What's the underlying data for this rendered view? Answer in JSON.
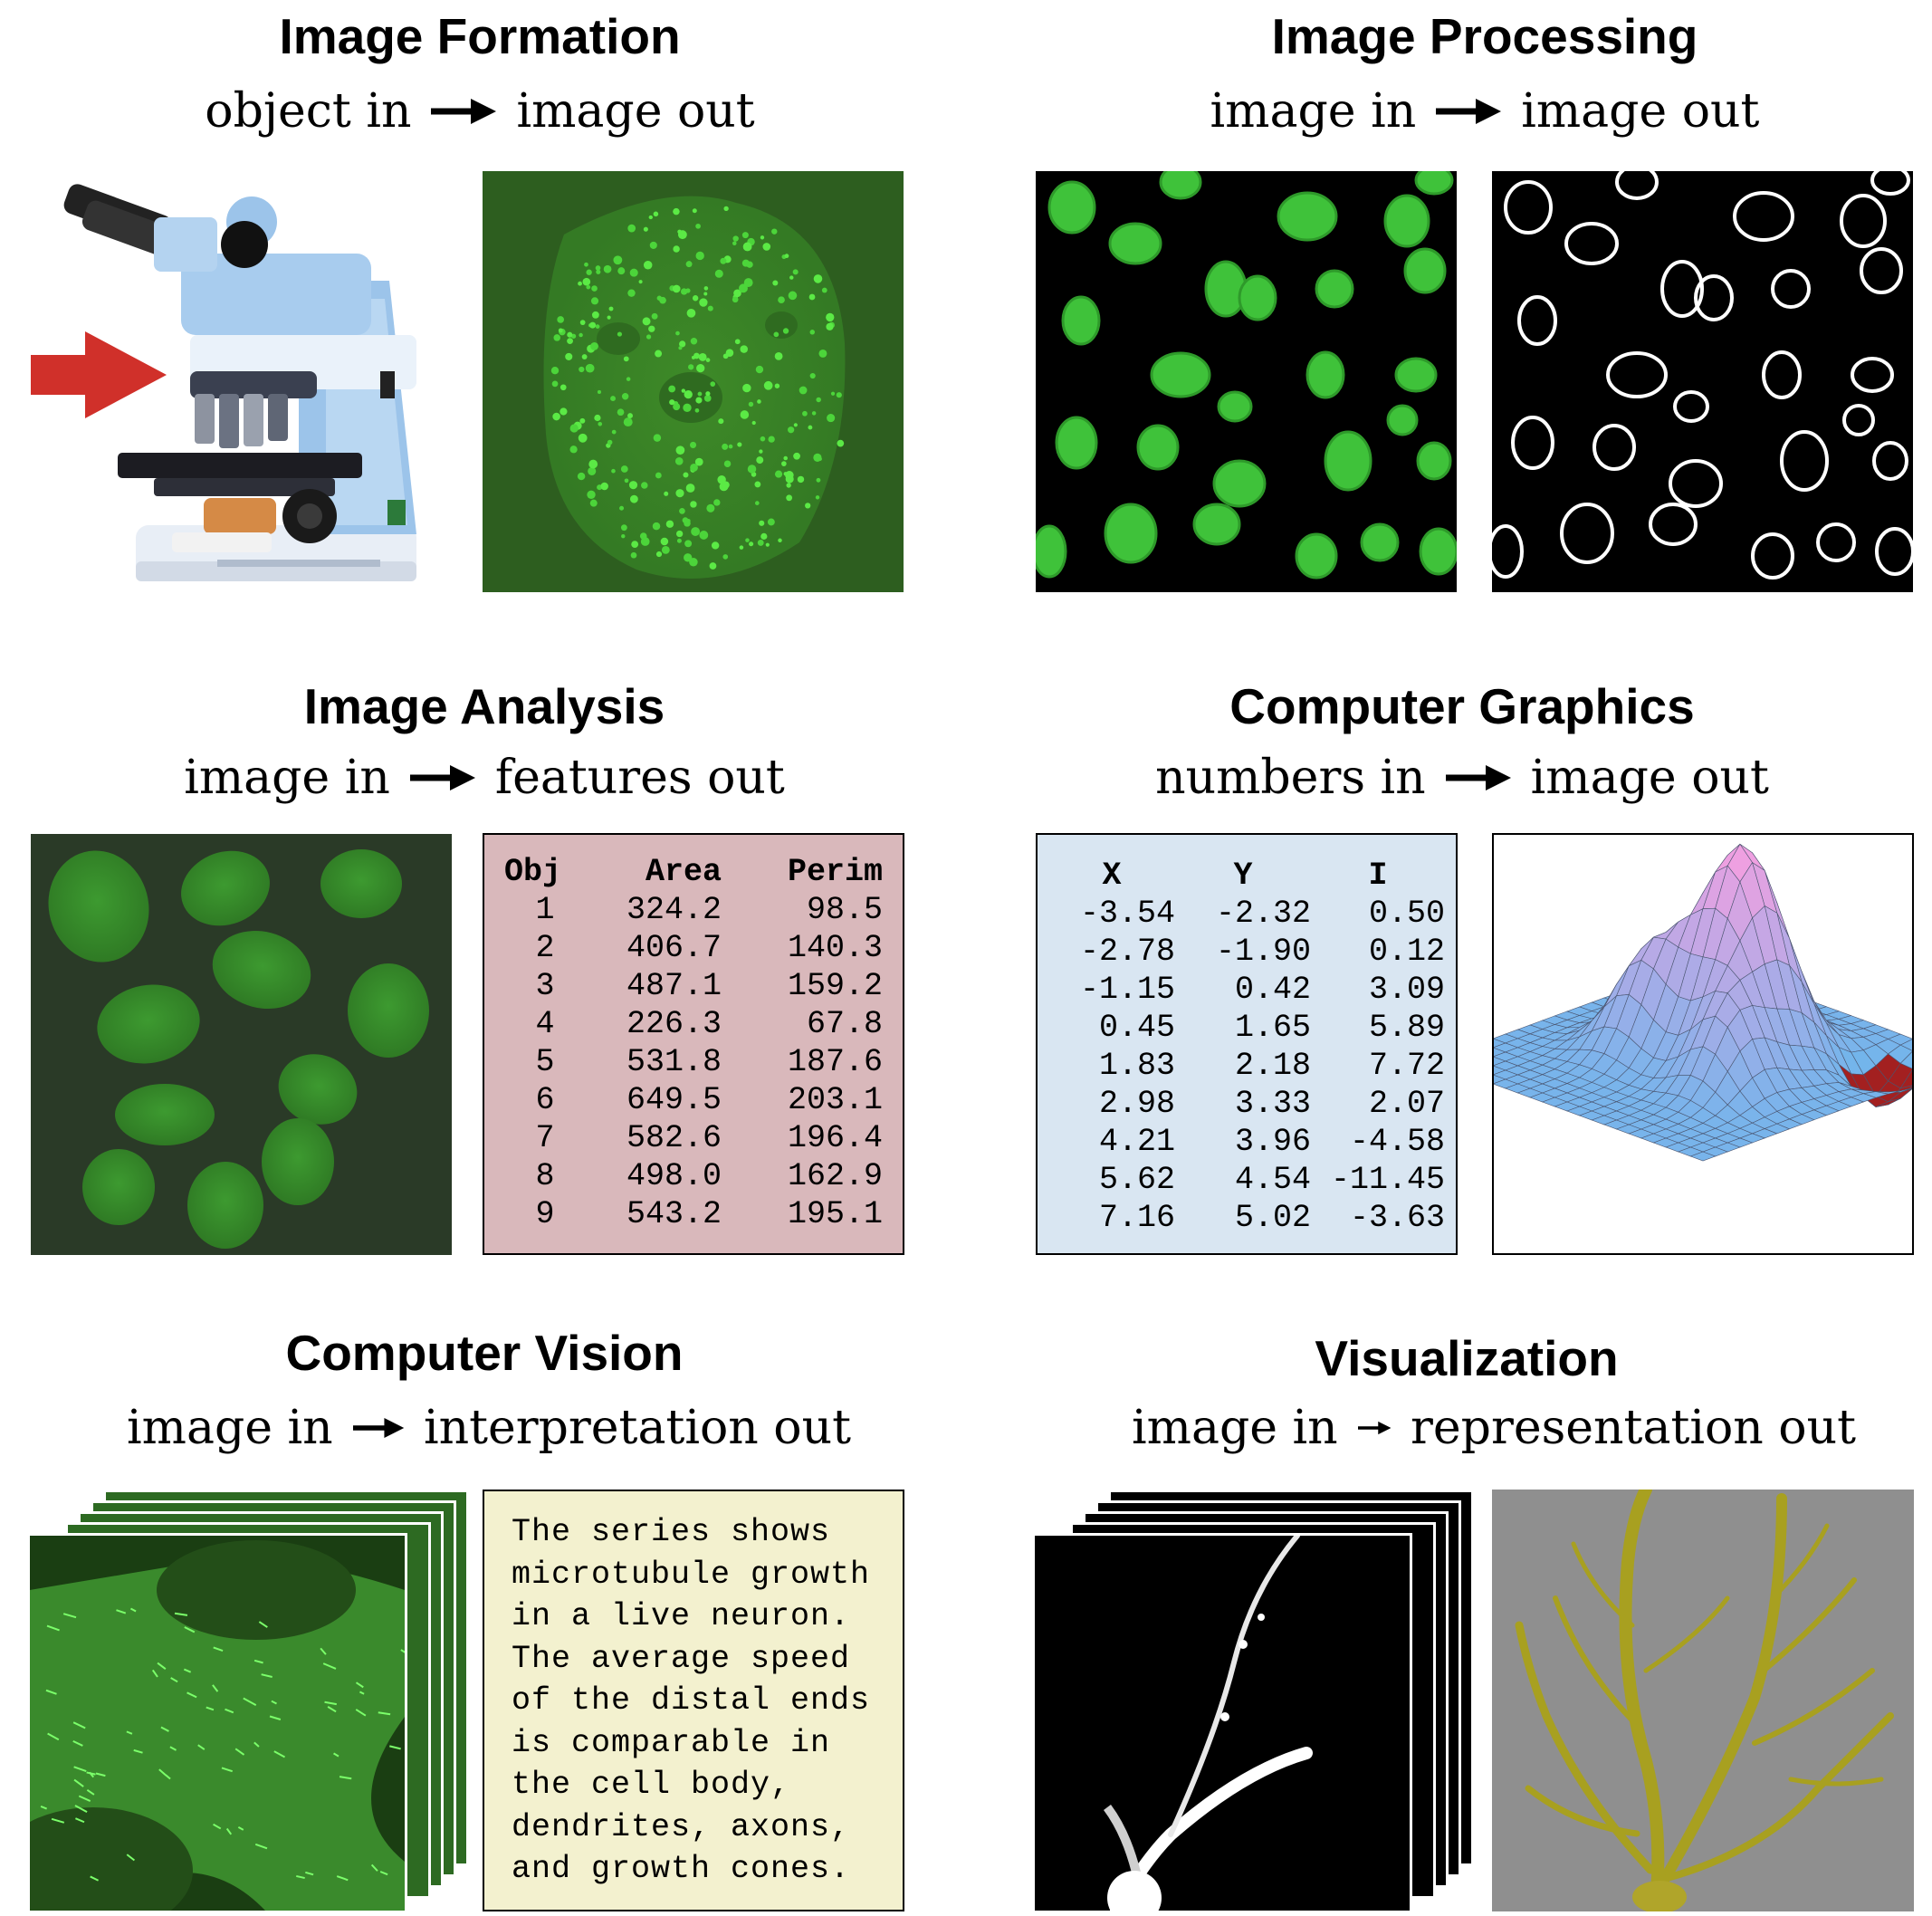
{
  "sections": {
    "formation": {
      "title": "Image Formation",
      "input": "object in",
      "output": "image out"
    },
    "processing": {
      "title": "Image Processing",
      "input": "image in",
      "output": "image out"
    },
    "analysis": {
      "title": "Image Analysis",
      "input": "image in",
      "output": "features out"
    },
    "graphics": {
      "title": "Computer Graphics",
      "input": "numbers in",
      "output": "image out"
    },
    "vision": {
      "title": "Computer Vision",
      "input": "image in",
      "output": "interpretation out"
    },
    "visualization": {
      "title": "Visualization",
      "input": "image in",
      "output": "representation out"
    }
  },
  "features_table": {
    "headers": [
      "Obj",
      "Area",
      "Perim"
    ],
    "rows": [
      [
        "1",
        "324.2",
        "98.5"
      ],
      [
        "2",
        "406.7",
        "140.3"
      ],
      [
        "3",
        "487.1",
        "159.2"
      ],
      [
        "4",
        "226.3",
        "67.8"
      ],
      [
        "5",
        "531.8",
        "187.6"
      ],
      [
        "6",
        "649.5",
        "203.1"
      ],
      [
        "7",
        "582.6",
        "196.4"
      ],
      [
        "8",
        "498.0",
        "162.9"
      ],
      [
        "9",
        "543.2",
        "195.1"
      ]
    ]
  },
  "numbers_table": {
    "headers": [
      "X",
      "Y",
      "I"
    ],
    "rows": [
      [
        "-3.54",
        "-2.32",
        "0.50"
      ],
      [
        "-2.78",
        "-1.90",
        "0.12"
      ],
      [
        "-1.15",
        "0.42",
        "3.09"
      ],
      [
        "0.45",
        "1.65",
        "5.89"
      ],
      [
        "1.83",
        "2.18",
        "7.72"
      ],
      [
        "2.98",
        "3.33",
        "2.07"
      ],
      [
        "4.21",
        "3.96",
        "-4.58"
      ],
      [
        "5.62",
        "4.54",
        "-11.45"
      ],
      [
        "7.16",
        "5.02",
        "-3.63"
      ]
    ]
  },
  "interpretation_lines": [
    "The series shows",
    "microtubule growth",
    "in a live neuron.",
    "The average speed",
    "of the distal ends",
    "is comparable in",
    "the cell body,",
    "dendrites, axons,",
    "and growth cones."
  ],
  "colors": {
    "features_bg": "#d9b8bb",
    "numbers_bg": "#d9e6f2",
    "interpretation_bg": "#f3f1cf",
    "cell_green": "#3fc23a",
    "dark_green_bg": "#2b5a22",
    "arrow_red": "#d0302a",
    "gold": "#a8a020"
  },
  "icons": [
    "microscope-image",
    "red-arrow-icon",
    "right-arrow-icon"
  ]
}
